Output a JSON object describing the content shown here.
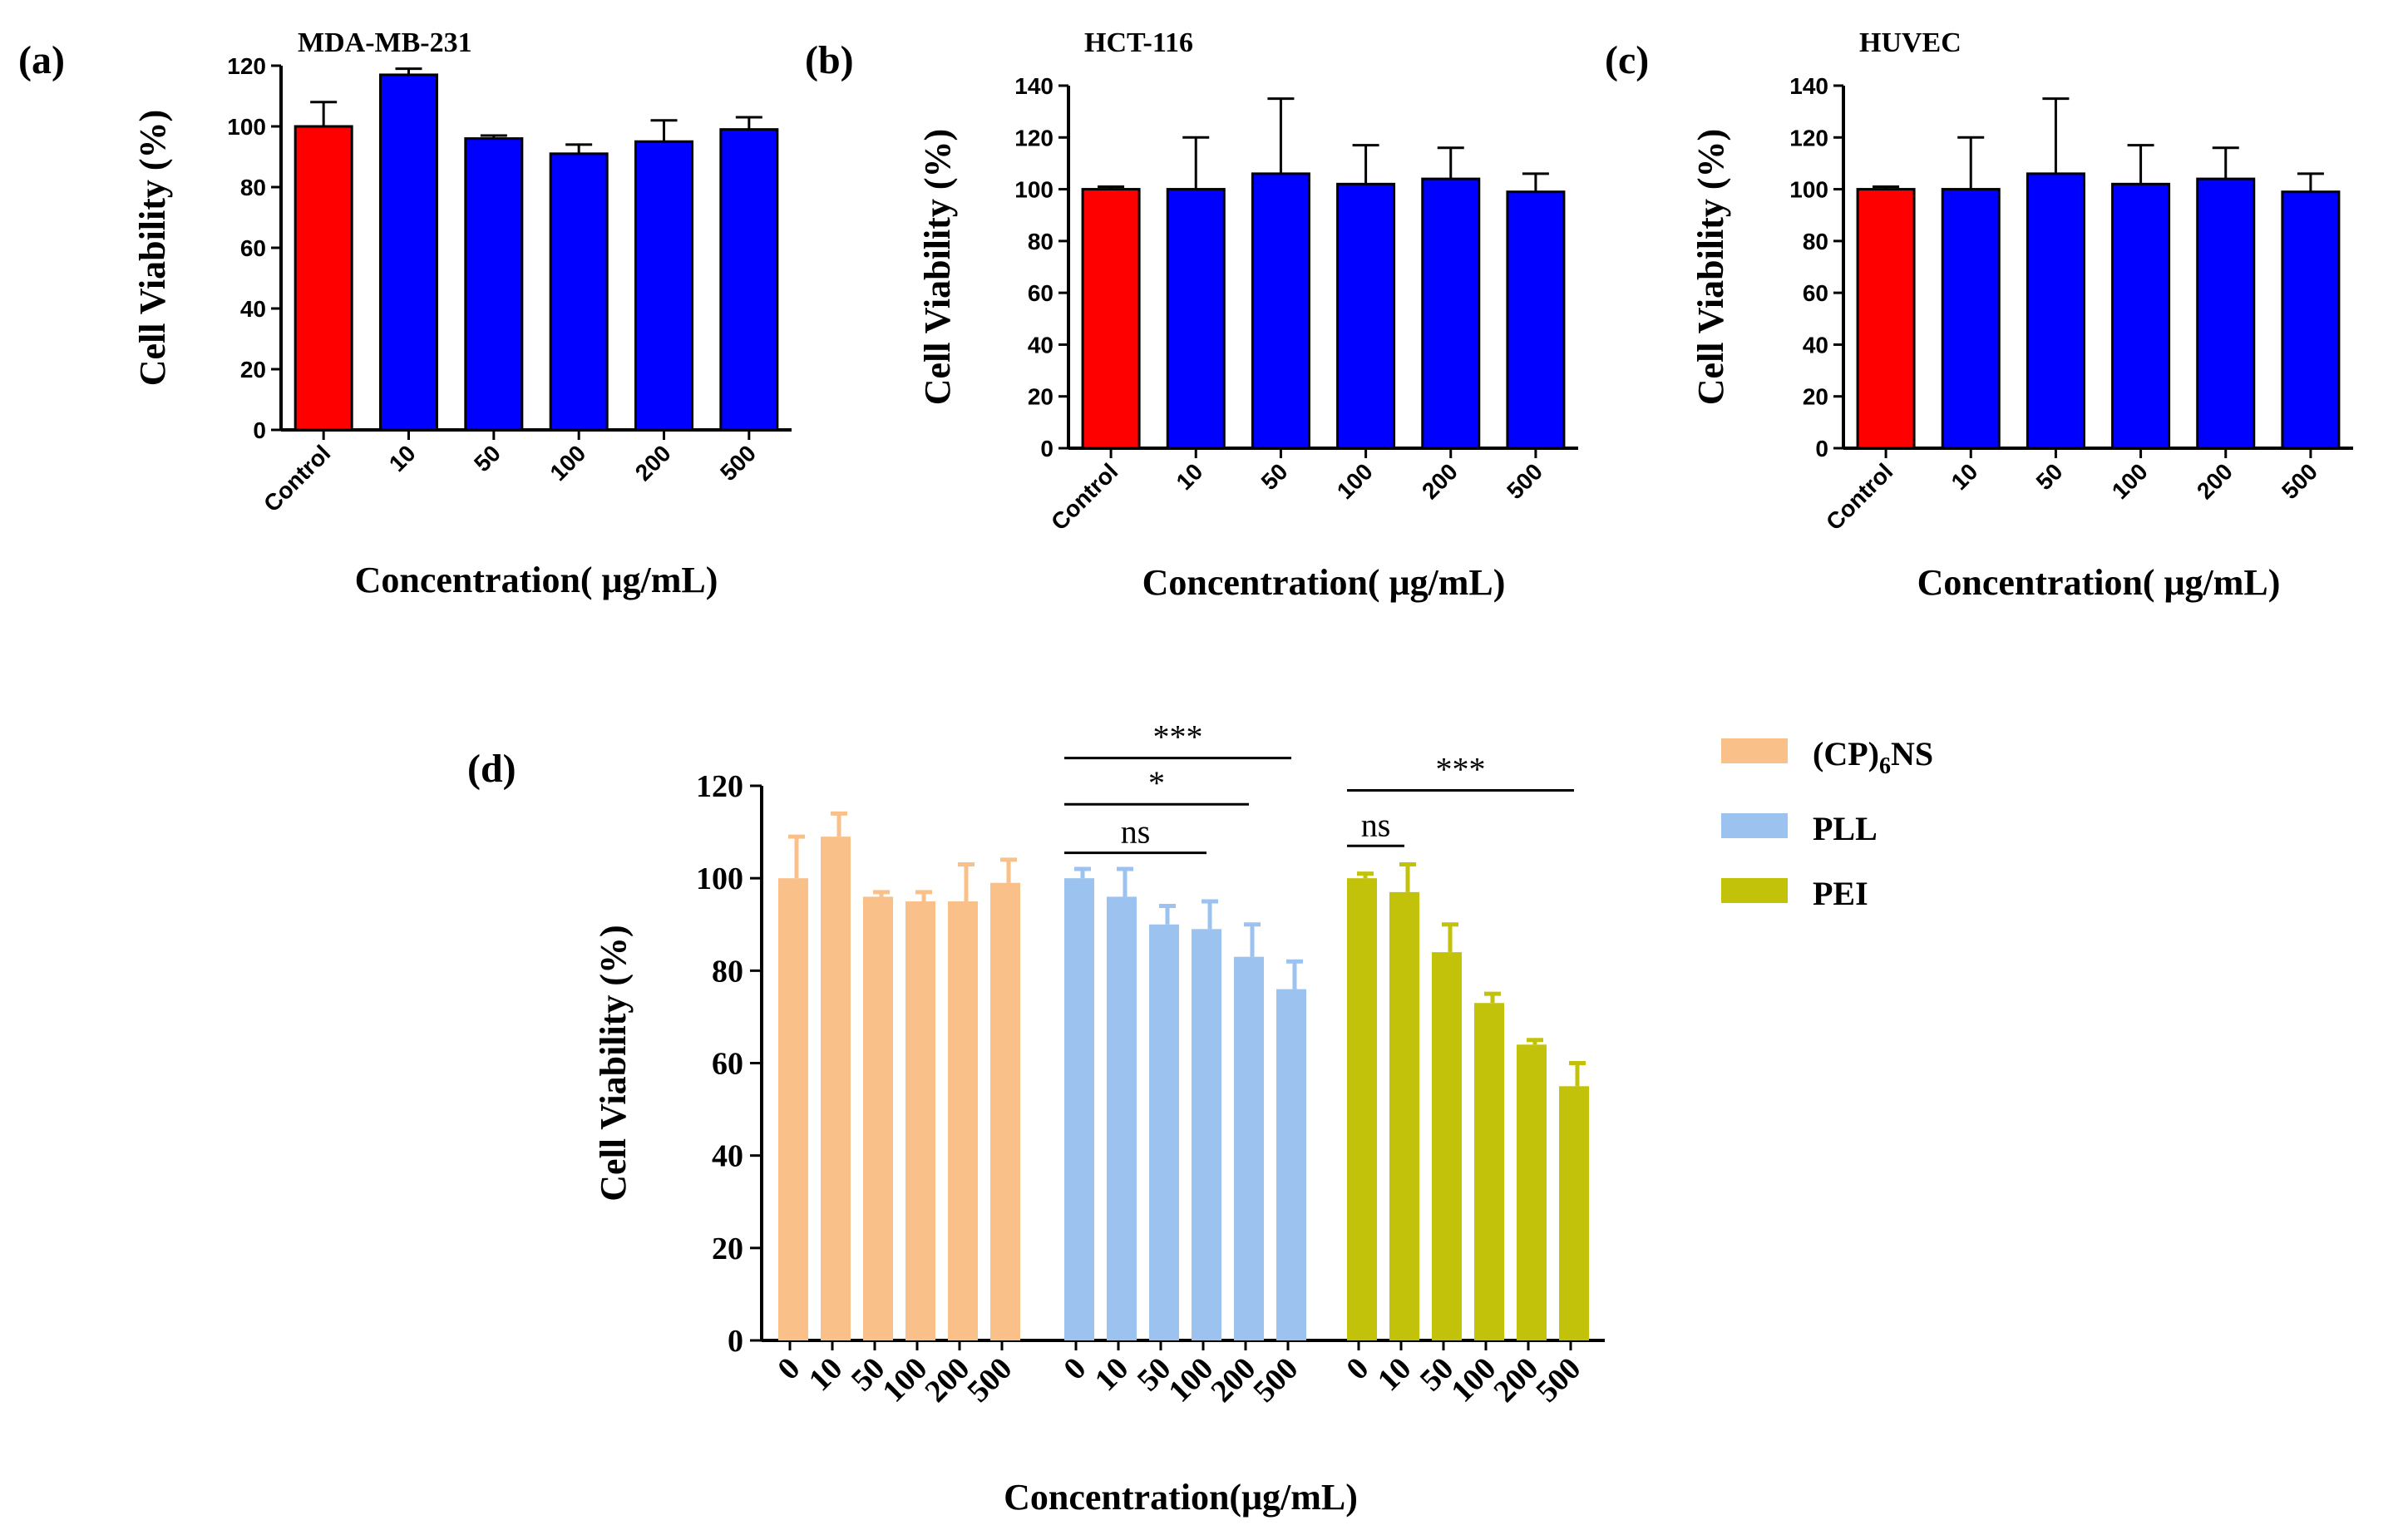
{
  "chart_data": [
    {
      "type": "bar",
      "panel": "(a)",
      "title": "MDA-MB-231",
      "xlabel": "Concentration( μg/mL)",
      "ylabel": "Cell  Viability (%)",
      "categories": [
        "Control",
        "10",
        "50",
        "100",
        "200",
        "500"
      ],
      "values": [
        100,
        117,
        96,
        91,
        95,
        99
      ],
      "errors": [
        8,
        2,
        1,
        3,
        7,
        4
      ],
      "bar_colors": [
        "#ff0000",
        "#0000ff",
        "#0000ff",
        "#0000ff",
        "#0000ff",
        "#0000ff"
      ],
      "ylim": [
        0,
        120
      ],
      "yticks": [
        0,
        20,
        40,
        60,
        80,
        100,
        120
      ]
    },
    {
      "type": "bar",
      "panel": "(b)",
      "title": "HCT-116",
      "xlabel": "Concentration( μg/mL)",
      "ylabel": "Cell  Viability (%)",
      "categories": [
        "Control",
        "10",
        "50",
        "100",
        "200",
        "500"
      ],
      "values": [
        100,
        100,
        106,
        102,
        104,
        99
      ],
      "errors": [
        1,
        20,
        29,
        15,
        12,
        7
      ],
      "bar_colors": [
        "#ff0000",
        "#0000ff",
        "#0000ff",
        "#0000ff",
        "#0000ff",
        "#0000ff"
      ],
      "ylim": [
        0,
        140
      ],
      "yticks": [
        0,
        20,
        40,
        60,
        80,
        100,
        120,
        140
      ]
    },
    {
      "type": "bar",
      "panel": "(c)",
      "title": "HUVEC",
      "xlabel": "Concentration( μg/mL)",
      "ylabel": "Cell  Viability (%)",
      "categories": [
        "Control",
        "10",
        "50",
        "100",
        "200",
        "500"
      ],
      "values": [
        100,
        100,
        106,
        102,
        104,
        99
      ],
      "errors": [
        1,
        20,
        29,
        15,
        12,
        7
      ],
      "bar_colors": [
        "#ff0000",
        "#0000ff",
        "#0000ff",
        "#0000ff",
        "#0000ff",
        "#0000ff"
      ],
      "ylim": [
        0,
        140
      ],
      "yticks": [
        0,
        20,
        40,
        60,
        80,
        100,
        120,
        140
      ]
    },
    {
      "type": "bar",
      "panel": "(d)",
      "xlabel": "Concentration(μg/mL)",
      "ylabel": "Cell Viability (%)",
      "ylim": [
        0,
        120
      ],
      "yticks": [
        0,
        20,
        40,
        60,
        80,
        100,
        120
      ],
      "series": [
        {
          "name": "(CP)6NS",
          "label_main": "(CP)",
          "label_sub": "6",
          "label_tail": "NS",
          "color": "#f9c08a",
          "categories": [
            "0",
            "10",
            "50",
            "100",
            "200",
            "500"
          ],
          "values": [
            100,
            109,
            96,
            95,
            95,
            99
          ],
          "errors": [
            9,
            5,
            1,
            2,
            8,
            5
          ]
        },
        {
          "name": "PLL",
          "label_main": "PLL",
          "color": "#9cc2ef",
          "categories": [
            "0",
            "10",
            "50",
            "100",
            "200",
            "500"
          ],
          "values": [
            100,
            96,
            90,
            89,
            83,
            76
          ],
          "errors": [
            2,
            6,
            4,
            6,
            7,
            6
          ]
        },
        {
          "name": "PEI",
          "label_main": "PEI",
          "color": "#c2c20a",
          "categories": [
            "0",
            "10",
            "50",
            "100",
            "200",
            "500"
          ],
          "values": [
            100,
            97,
            84,
            73,
            64,
            55
          ],
          "errors": [
            1,
            6,
            6,
            2,
            1,
            5
          ]
        }
      ],
      "significance": [
        {
          "label": "***",
          "series": 1,
          "from": 0,
          "to": 5,
          "level": 126
        },
        {
          "label": "*",
          "series": 1,
          "from": 0,
          "to": 4,
          "level": 116
        },
        {
          "label": "ns",
          "series": 1,
          "from": 0,
          "to": 3,
          "level": 105.5
        },
        {
          "label": "ns",
          "series": 2,
          "from": 0,
          "to": 1,
          "level": 107
        },
        {
          "label": "***",
          "series": 2,
          "from": 0,
          "to": 5,
          "level": 119
        }
      ]
    }
  ]
}
